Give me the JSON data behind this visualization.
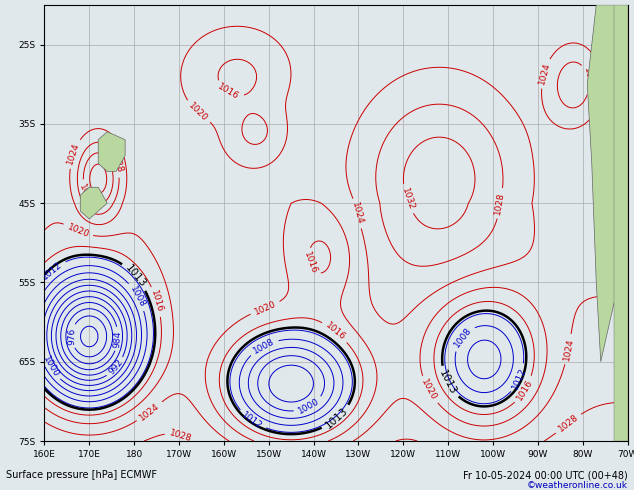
{
  "title_left": "Surface pressure [hPa] ECMWF",
  "title_right": "Fr 10-05-2024 00:00 UTC (00+48)",
  "copyright": "©weatheronline.co.uk",
  "lon_min": 160,
  "lon_max": 290,
  "lat_min": -75,
  "lat_max": -20,
  "contour_interval": 4,
  "pressure_min": 960,
  "pressure_max": 1036,
  "bg_color": "#e0e8ec",
  "land_color": "#b8d8a0",
  "grid_color": "#aaaaaa",
  "contour_color_low": "#0000cc",
  "contour_color_1013": "#000000",
  "contour_color_high": "#cc0000",
  "label_fontsize": 6.5,
  "xlabel_tick_step": 10,
  "ylabel_tick_step": 10
}
